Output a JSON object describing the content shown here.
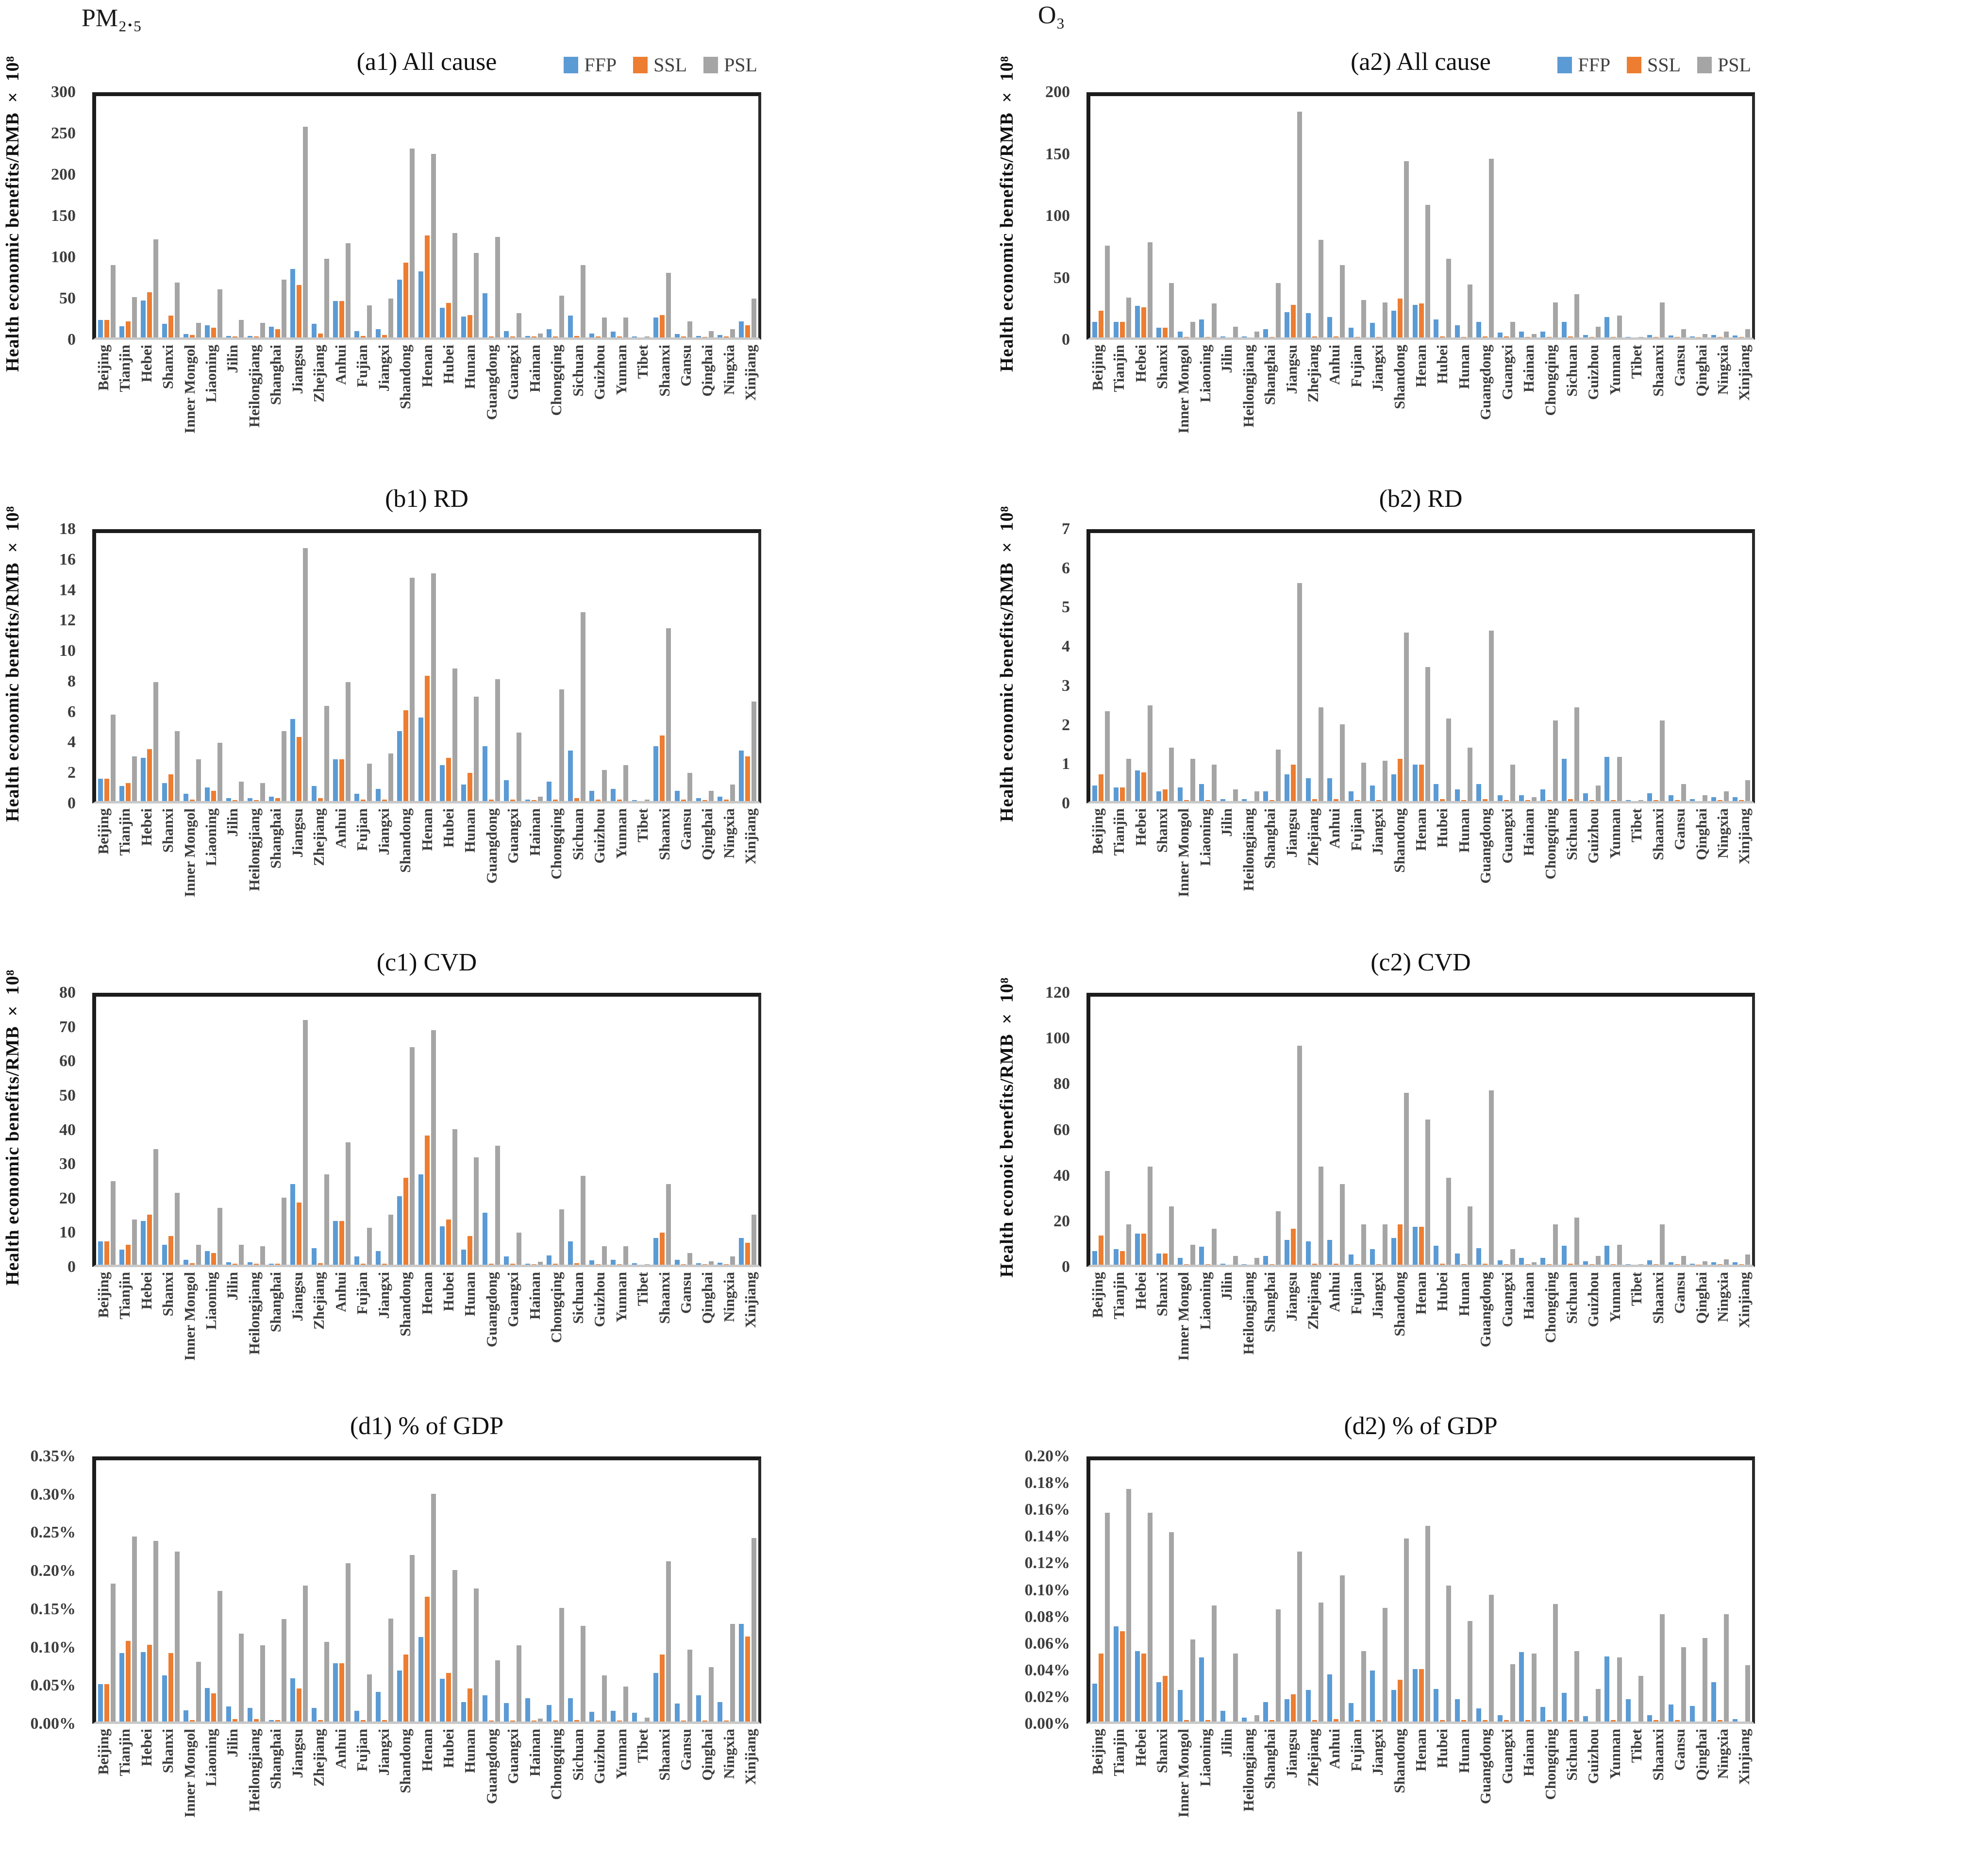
{
  "page": {
    "left_header": "PM₂.₅",
    "right_header": "O₃"
  },
  "legend": {
    "items": [
      {
        "label": "FFP",
        "color": "#5B9BD5"
      },
      {
        "label": "SSL",
        "color": "#ED7D31"
      },
      {
        "label": "PSL",
        "color": "#A5A5A5"
      }
    ]
  },
  "categories": [
    "Beijing",
    "Tianjin",
    "Hebei",
    "Shanxi",
    "Inner Mongol",
    "Liaoning",
    "Jilin",
    "Heilongjiang",
    "Shanghai",
    "Jiangsu",
    "Zhejiang",
    "Anhui",
    "Fujian",
    "Jiangxi",
    "Shandong",
    "Henan",
    "Hubei",
    "Hunan",
    "Guangdong",
    "Guangxi",
    "Hainan",
    "Chongqing",
    "Sichuan",
    "Guizhou",
    "Yunnan",
    "Tibet",
    "Shaanxi",
    "Gansu",
    "Qinghai",
    "Ningxia",
    "Xinjiang"
  ],
  "chart_data": [
    {
      "type": "bar",
      "title": "(a1) All cause",
      "ylabel": "Health economic benefits/RMB × 10⁸",
      "ylim": [
        0,
        300
      ],
      "yticks": [
        "0",
        "50",
        "100",
        "150",
        "200",
        "250",
        "300"
      ],
      "legend_visible": true,
      "series": [
        {
          "name": "FFP",
          "values": [
            22,
            14,
            46,
            17,
            4,
            15,
            2,
            2,
            13,
            85,
            17,
            45,
            8,
            10,
            72,
            82,
            37,
            26,
            55,
            8,
            2,
            10,
            27,
            5,
            7,
            1,
            25,
            4,
            2,
            3,
            20
          ]
        },
        {
          "name": "SSL",
          "values": [
            22,
            20,
            56,
            27,
            3,
            12,
            1,
            1,
            10,
            65,
            5,
            45,
            2,
            3,
            93,
            127,
            43,
            28,
            1,
            1,
            1,
            1,
            2,
            1,
            1,
            0,
            28,
            1,
            0.5,
            1,
            15
          ]
        },
        {
          "name": "PSL",
          "values": [
            90,
            50,
            122,
            68,
            18,
            60,
            22,
            18,
            72,
            262,
            98,
            117,
            40,
            48,
            235,
            228,
            130,
            105,
            125,
            30,
            5,
            52,
            90,
            25,
            25,
            1,
            80,
            20,
            8,
            10,
            48
          ]
        }
      ]
    },
    {
      "type": "bar",
      "title": "(a2) All cause",
      "ylabel": "Health economic benefits/RMB × 10⁸",
      "ylim": [
        0,
        200
      ],
      "yticks": [
        "0",
        "50",
        "100",
        "150",
        "200"
      ],
      "legend_visible": true,
      "series": [
        {
          "name": "FFP",
          "values": [
            13,
            13,
            26,
            8,
            5,
            15,
            1,
            1,
            7,
            21,
            20,
            17,
            8,
            12,
            22,
            27,
            15,
            10,
            13,
            4,
            5,
            5,
            13,
            2,
            17,
            0.5,
            2,
            1.5,
            1,
            2,
            1.5
          ]
        },
        {
          "name": "SSL",
          "values": [
            22,
            13,
            25,
            8,
            0.5,
            0.5,
            0,
            0,
            0.5,
            27,
            1,
            1,
            0.5,
            0.5,
            32,
            28,
            1,
            0.5,
            1,
            1,
            0.5,
            0.5,
            1,
            0.3,
            0.5,
            0,
            0.5,
            0.3,
            0.2,
            0.3,
            0.4
          ]
        },
        {
          "name": "PSL",
          "values": [
            76,
            33,
            79,
            45,
            13,
            28,
            9,
            5,
            45,
            187,
            81,
            60,
            31,
            29,
            146,
            110,
            65,
            44,
            148,
            13,
            3,
            29,
            36,
            9,
            18,
            0.5,
            29,
            7,
            3,
            5,
            7
          ]
        }
      ]
    },
    {
      "type": "bar",
      "title": "(b1) RD",
      "ylabel": "Health economic benefits/RMB × 10⁸",
      "ylim": [
        0,
        18
      ],
      "yticks": [
        "0",
        "2",
        "4",
        "6",
        "8",
        "10",
        "12",
        "14",
        "16",
        "18"
      ],
      "legend_visible": false,
      "series": [
        {
          "name": "FFP",
          "values": [
            1.5,
            1.0,
            2.9,
            1.2,
            0.5,
            0.9,
            0.2,
            0.2,
            0.3,
            5.5,
            1.0,
            2.8,
            0.5,
            0.8,
            4.7,
            5.6,
            2.4,
            1.1,
            3.7,
            1.4,
            0.1,
            1.3,
            3.4,
            0.7,
            0.8,
            0.05,
            3.7,
            0.7,
            0.2,
            0.3,
            3.4
          ]
        },
        {
          "name": "SSL",
          "values": [
            1.5,
            1.2,
            3.5,
            1.8,
            0.1,
            0.7,
            0.05,
            0.05,
            0.2,
            4.3,
            0.2,
            2.8,
            0.1,
            0.1,
            6.1,
            8.4,
            2.9,
            1.9,
            0.1,
            0.1,
            0.05,
            0.1,
            0.2,
            0.1,
            0.1,
            0,
            4.4,
            0.1,
            0.05,
            0.1,
            3.0
          ]
        },
        {
          "name": "PSL",
          "values": [
            5.8,
            3.0,
            8.0,
            4.7,
            2.8,
            3.9,
            1.3,
            1.2,
            4.7,
            17.0,
            6.4,
            8.0,
            2.5,
            3.2,
            15.0,
            15.3,
            8.9,
            7.0,
            8.2,
            4.6,
            0.3,
            7.5,
            12.7,
            2.1,
            2.4,
            0.1,
            11.6,
            1.9,
            0.7,
            1.1,
            6.7
          ]
        }
      ]
    },
    {
      "type": "bar",
      "title": "(b2) RD",
      "ylabel": "Health economic benefits/RMB × 10⁸",
      "ylim": [
        0,
        7
      ],
      "yticks": [
        "0",
        "1",
        "2",
        "3",
        "4",
        "5",
        "6",
        "7"
      ],
      "legend_visible": false,
      "series": [
        {
          "name": "FFP",
          "values": [
            0.4,
            0.35,
            0.8,
            0.25,
            0.35,
            0.45,
            0.05,
            0.05,
            0.25,
            0.7,
            0.6,
            0.6,
            0.25,
            0.4,
            0.7,
            0.95,
            0.45,
            0.3,
            0.45,
            0.15,
            0.15,
            0.3,
            1.1,
            0.2,
            1.15,
            0.02,
            0.2,
            0.15,
            0.05,
            0.1,
            0.1
          ]
        },
        {
          "name": "SSL",
          "values": [
            0.7,
            0.35,
            0.75,
            0.3,
            0.02,
            0.02,
            0,
            0,
            0.02,
            0.95,
            0.05,
            0.05,
            0.02,
            0.02,
            1.1,
            0.95,
            0.05,
            0.02,
            0.05,
            0.02,
            0.02,
            0.02,
            0.05,
            0.02,
            0.02,
            0,
            0.02,
            0.02,
            0,
            0.02,
            0.02
          ]
        },
        {
          "name": "PSL",
          "values": [
            2.35,
            1.1,
            2.5,
            1.4,
            1.1,
            0.95,
            0.3,
            0.25,
            1.35,
            5.7,
            2.45,
            2.0,
            1.0,
            1.05,
            4.4,
            3.5,
            2.15,
            1.4,
            4.45,
            0.95,
            0.1,
            2.1,
            2.45,
            0.4,
            1.15,
            0.02,
            2.1,
            0.45,
            0.15,
            0.25,
            0.55
          ]
        }
      ]
    },
    {
      "type": "bar",
      "title": "(c1) CVD",
      "ylabel": "Health economic benefits/RMB × 10⁸",
      "ylim": [
        0,
        80
      ],
      "yticks": [
        "0",
        "10",
        "20",
        "30",
        "40",
        "50",
        "60",
        "70",
        "80"
      ],
      "legend_visible": false,
      "series": [
        {
          "name": "FFP",
          "values": [
            7,
            4.5,
            13,
            6,
            1.5,
            4,
            0.7,
            0.7,
            0.3,
            24,
            5,
            13,
            2.5,
            4,
            20.5,
            27,
            11.5,
            4.5,
            15.5,
            2.5,
            0.3,
            2.8,
            7,
            1.3,
            1.5,
            0.5,
            8,
            1.5,
            0.4,
            0.6,
            8
          ]
        },
        {
          "name": "SSL",
          "values": [
            7,
            6,
            15,
            8.5,
            0.5,
            3.5,
            0.3,
            0.3,
            0.3,
            18.5,
            0.5,
            13,
            0.3,
            0.3,
            26,
            38.5,
            13.5,
            8.5,
            0.3,
            0.3,
            0.2,
            0.3,
            0.4,
            0.2,
            0.2,
            0,
            9.5,
            0.2,
            0.1,
            0.2,
            6.5
          ]
        },
        {
          "name": "PSL",
          "values": [
            25,
            13.5,
            34.5,
            21.5,
            6,
            17,
            6,
            5.5,
            20,
            73,
            27,
            36.5,
            11,
            15,
            65,
            70,
            40.5,
            32,
            35.5,
            9.5,
            0.8,
            16.5,
            26.5,
            5.5,
            5.5,
            0.2,
            24,
            3.5,
            1,
            2.5,
            15
          ]
        }
      ]
    },
    {
      "type": "bar",
      "title": "(c2) CVD",
      "ylabel": "Health econoic benefits/RMB × 10⁸",
      "ylim": [
        0,
        120
      ],
      "yticks": [
        "0",
        "20",
        "40",
        "60",
        "80",
        "100",
        "120"
      ],
      "legend_visible": false,
      "series": [
        {
          "name": "FFP",
          "values": [
            6,
            7,
            14,
            5,
            3,
            8,
            0.5,
            0.3,
            4,
            11,
            10.5,
            11,
            4.5,
            7,
            12,
            17,
            8.5,
            5,
            7.5,
            2,
            3,
            3,
            8.5,
            1.5,
            8.5,
            0.3,
            2,
            1,
            0.5,
            1,
            1
          ]
        },
        {
          "name": "SSL",
          "values": [
            13,
            6,
            14,
            5,
            0.3,
            0.3,
            0,
            0,
            0.3,
            16,
            0.5,
            0.5,
            0.3,
            0.3,
            18,
            17,
            0.5,
            0.3,
            0.5,
            0.3,
            0.2,
            0.3,
            0.5,
            0.2,
            0.3,
            0,
            0.3,
            0.2,
            0.1,
            0.2,
            0.2
          ]
        },
        {
          "name": "PSL",
          "values": [
            42,
            18,
            44,
            26,
            9,
            16,
            4,
            3,
            24,
            98,
            44,
            36,
            18,
            18,
            77,
            65,
            39,
            26,
            78,
            7,
            1,
            18,
            21,
            4,
            9,
            0.3,
            18,
            4,
            1.5,
            2.5,
            4.5
          ]
        }
      ]
    },
    {
      "type": "bar",
      "title": "(d1) % of GDP",
      "ylabel": "",
      "ylim": [
        0,
        0.35
      ],
      "yticks": [
        "0.00%",
        "0.05%",
        "0.10%",
        "0.15%",
        "0.20%",
        "0.25%",
        "0.30%",
        "0.35%"
      ],
      "legend_visible": false,
      "series": [
        {
          "name": "FFP",
          "values": [
            0.05,
            0.092,
            0.093,
            0.062,
            0.015,
            0.045,
            0.02,
            0.018,
            0.002,
            0.058,
            0.018,
            0.078,
            0.014,
            0.04,
            0.068,
            0.113,
            0.057,
            0.026,
            0.035,
            0.025,
            0.031,
            0.022,
            0.031,
            0.013,
            0.014,
            0.012,
            0.065,
            0.024,
            0.035,
            0.026,
            0.131
          ]
        },
        {
          "name": "SSL",
          "values": [
            0.05,
            0.108,
            0.103,
            0.092,
            0.002,
            0.038,
            0.003,
            0.003,
            0.002,
            0.044,
            0.002,
            0.078,
            0.002,
            0.002,
            0.09,
            0.167,
            0.065,
            0.044,
            0.001,
            0.001,
            0.001,
            0.001,
            0.002,
            0.001,
            0.001,
            0,
            0.09,
            0.001,
            0.001,
            0.001,
            0.114
          ]
        },
        {
          "name": "PSL",
          "values": [
            0.185,
            0.248,
            0.242,
            0.228,
            0.08,
            0.175,
            0.118,
            0.102,
            0.137,
            0.182,
            0.107,
            0.212,
            0.063,
            0.138,
            0.223,
            0.305,
            0.203,
            0.178,
            0.082,
            0.102,
            0.004,
            0.152,
            0.128,
            0.062,
            0.047,
            0.005,
            0.215,
            0.096,
            0.073,
            0.131,
            0.246
          ]
        }
      ]
    },
    {
      "type": "bar",
      "title": "(d2) % of GDP",
      "ylabel": "",
      "ylim": [
        0,
        0.2
      ],
      "yticks": [
        "0.00%",
        "0.02%",
        "0.04%",
        "0.06%",
        "0.08%",
        "0.10%",
        "0.12%",
        "0.14%",
        "0.16%",
        "0.18%",
        "0.20%"
      ],
      "legend_visible": false,
      "series": [
        {
          "name": "FFP",
          "values": [
            0.029,
            0.073,
            0.054,
            0.03,
            0.024,
            0.049,
            0.008,
            0.003,
            0.015,
            0.017,
            0.024,
            0.036,
            0.014,
            0.039,
            0.024,
            0.04,
            0.025,
            0.017,
            0.01,
            0.005,
            0.053,
            0.011,
            0.022,
            0.004,
            0.05,
            0.017,
            0.005,
            0.013,
            0.012,
            0.03,
            0.002
          ]
        },
        {
          "name": "SSL",
          "values": [
            0.052,
            0.069,
            0.052,
            0.035,
            0.001,
            0.001,
            0,
            0,
            0.001,
            0.021,
            0.001,
            0.002,
            0.001,
            0.001,
            0.032,
            0.04,
            0.001,
            0.001,
            0.001,
            0.001,
            0.001,
            0.001,
            0.001,
            0,
            0.001,
            0,
            0.001,
            0.001,
            0,
            0.001,
            0
          ]
        },
        {
          "name": "PSL",
          "values": [
            0.16,
            0.178,
            0.16,
            0.145,
            0.063,
            0.089,
            0.052,
            0.005,
            0.086,
            0.13,
            0.091,
            0.112,
            0.054,
            0.087,
            0.14,
            0.15,
            0.104,
            0.077,
            0.097,
            0.044,
            0.052,
            0.09,
            0.054,
            0.025,
            0.049,
            0.035,
            0.082,
            0.057,
            0.064,
            0.082,
            0.043
          ]
        }
      ]
    }
  ]
}
